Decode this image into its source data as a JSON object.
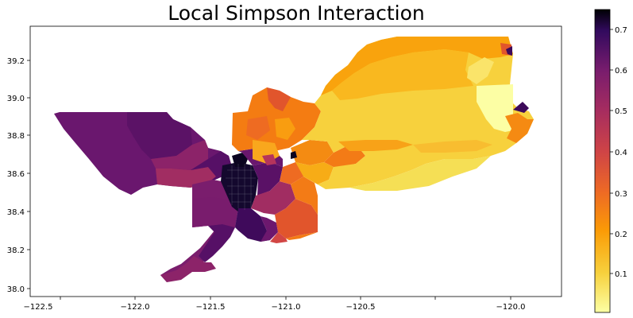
{
  "title": "Local Simpson Interaction",
  "x_ticks": [
    "−122.5",
    "−122.0",
    "−121.5",
    "−121.0",
    "−120.5",
    "−120.0"
  ],
  "y_ticks": [
    "38.0",
    "38.2",
    "38.4",
    "38.6",
    "38.8",
    "39.0",
    "39.2"
  ],
  "colorbar": {
    "ticks": [
      "0.1",
      "0.2",
      "0.3",
      "0.4",
      "0.5",
      "0.6",
      "0.7"
    ],
    "range": [
      0.0,
      0.75
    ],
    "colormap": "inferno_r"
  },
  "map": {
    "extent_lon": [
      -122.55,
      -119.73
    ],
    "extent_lat": [
      37.97,
      39.37
    ]
  }
}
